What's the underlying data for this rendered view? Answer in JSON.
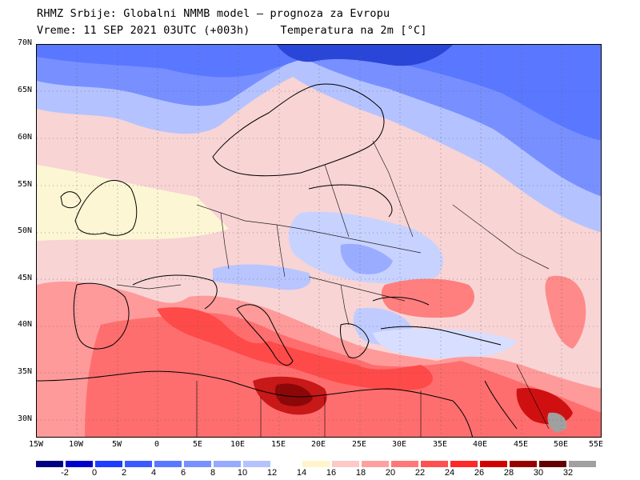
{
  "header": {
    "title_line1": "RHMZ Srbije: Globalni NMMB model — prognoza za Evropu",
    "title_line2_left": "Vreme: 11 SEP 2021 03UTC (+003h)",
    "title_line2_right": "Temperatura na 2m [°C]"
  },
  "axes": {
    "lat_labels": [
      "70N",
      "65N",
      "60N",
      "55N",
      "50N",
      "45N",
      "40N",
      "35N",
      "30N"
    ],
    "lon_labels": [
      "15W",
      "10W",
      "5W",
      "0",
      "5E",
      "10E",
      "15E",
      "20E",
      "25E",
      "30E",
      "35E",
      "40E",
      "45E",
      "50E",
      "55E"
    ]
  },
  "map": {
    "region": "Europe",
    "variable": "2 m temperature",
    "lon_range": [
      -15,
      55
    ],
    "lat_range": [
      28,
      70
    ]
  },
  "colorbar": {
    "labels": [
      "-2",
      "0",
      "2",
      "4",
      "6",
      "8",
      "10",
      "12",
      "14",
      "16",
      "18",
      "20",
      "22",
      "24",
      "26",
      "28",
      "30",
      "32"
    ],
    "colors": [
      "#000080",
      "#0000cd",
      "#1e3cff",
      "#3c5aff",
      "#5a78ff",
      "#7890ff",
      "#96aaff",
      "#b4c3ff",
      "#ffffff",
      "#fff5c8",
      "#ffc8c8",
      "#ffa0a0",
      "#ff7878",
      "#ff5050",
      "#ff2828",
      "#d20000",
      "#960000",
      "#640000",
      "#a0a0a0"
    ]
  }
}
